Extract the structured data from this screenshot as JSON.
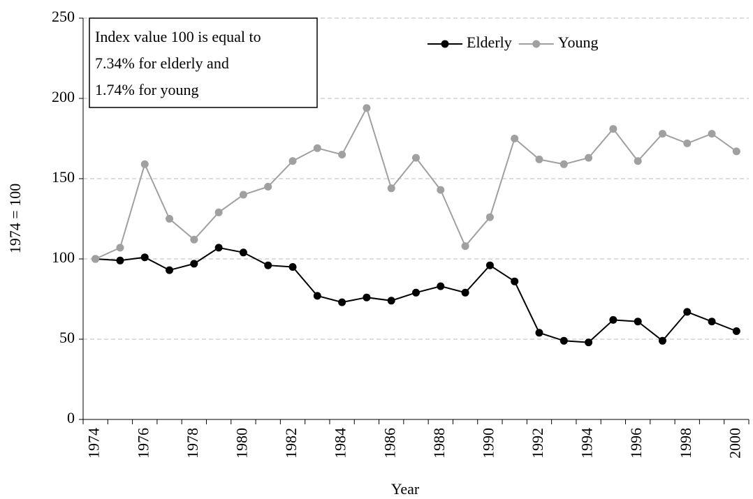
{
  "chart_data": {
    "type": "line",
    "x_label": "Year",
    "y_label": "1974 = 100",
    "annotation": [
      "Index value 100 is equal to",
      "7.34%  for elderly and",
      "1.74%  for young"
    ],
    "categories": [
      "1974",
      null,
      "1976",
      null,
      "1978",
      null,
      "1980",
      null,
      "1982",
      null,
      "1984",
      null,
      "1986",
      null,
      "1988",
      null,
      "1990",
      null,
      "1992",
      null,
      "1994",
      null,
      "1996",
      null,
      "1998",
      null,
      "2000"
    ],
    "series": [
      {
        "name": "Elderly",
        "color": "#000000",
        "values": [
          100,
          99,
          101,
          93,
          97,
          107,
          104,
          96,
          95,
          77,
          73,
          76,
          74,
          79,
          83,
          79,
          96,
          86,
          54,
          49,
          48,
          62,
          61,
          49,
          67,
          61,
          55
        ]
      },
      {
        "name": "Young",
        "color": "#a0a0a0",
        "values": [
          100,
          107,
          159,
          125,
          112,
          129,
          140,
          145,
          161,
          169,
          165,
          194,
          144,
          163,
          143,
          108,
          126,
          175,
          162,
          159,
          163,
          181,
          161,
          178,
          172,
          178,
          167
        ]
      }
    ],
    "ylim": [
      0,
      250
    ],
    "yticks": [
      0,
      50,
      100,
      150,
      200,
      250
    ],
    "grid": true,
    "legend": "upper right"
  }
}
